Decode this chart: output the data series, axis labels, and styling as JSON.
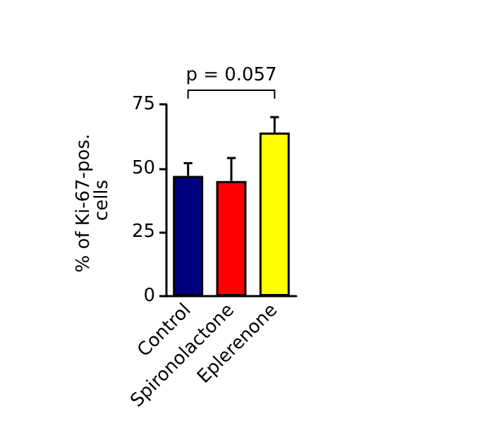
{
  "chart_data": {
    "type": "bar",
    "ylabel": "% of Ki-67-pos. cells",
    "categories": [
      "Control",
      "Spironolactone",
      "Eplerenone"
    ],
    "values": [
      47,
      45,
      64
    ],
    "colors": [
      "#00007f",
      "#ff0000",
      "#ffff00"
    ],
    "errors": [
      [
        47,
        52
      ],
      [
        45,
        54
      ],
      [
        64,
        70
      ]
    ],
    "ylim": [
      0,
      75
    ],
    "yticks": [
      0,
      25,
      50,
      75
    ],
    "grid": false,
    "annotations": [
      "p = 0.057"
    ]
  }
}
